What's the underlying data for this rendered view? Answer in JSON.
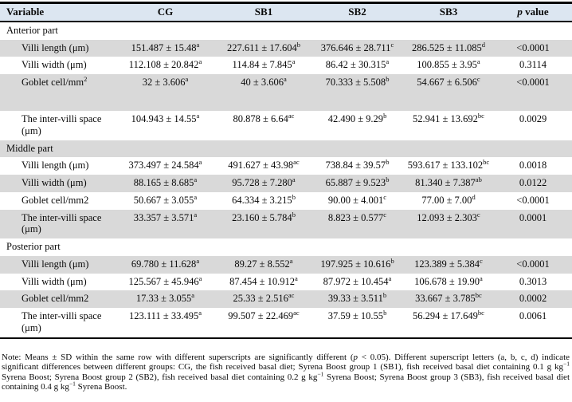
{
  "colors": {
    "header_bg": "#dce6f1",
    "stripe_bg": "#d9d9d9",
    "border": "#000000"
  },
  "header": {
    "columns": [
      {
        "text": "Variable"
      },
      {
        "text": "CG"
      },
      {
        "text": "SB1"
      },
      {
        "text": "SB2"
      },
      {
        "text": "SB3"
      },
      {
        "text": "p value",
        "italic_first_word": true
      }
    ]
  },
  "sections": [
    {
      "title": "Anterior part",
      "rows": [
        {
          "label": "Villi length (μm)",
          "cells": [
            {
              "v": "151.487 ± 15.48",
              "s": "a"
            },
            {
              "v": "227.611 ± 17.604",
              "s": "b"
            },
            {
              "v": "376.646 ± 28.711",
              "s": "c"
            },
            {
              "v": "286.525 ± 11.085",
              "s": "d"
            }
          ],
          "p": "<0.0001"
        },
        {
          "label": "Villi width (μm)",
          "cells": [
            {
              "v": "112.108 ± 20.842",
              "s": "a"
            },
            {
              "v": "114.84 ± 7.845",
              "s": "a"
            },
            {
              "v": "86.42 ± 30.315",
              "s": "a"
            },
            {
              "v": "100.855 ± 3.95",
              "s": "a"
            }
          ],
          "p": "0.3114"
        },
        {
          "label": "Goblet cell/mm",
          "label_sup": "2",
          "tall": true,
          "cells": [
            {
              "v": "32 ± 3.606",
              "s": "a"
            },
            {
              "v": "40 ± 3.606",
              "s": "a"
            },
            {
              "v": "70.333 ± 5.508",
              "s": "b"
            },
            {
              "v": "54.667 ± 6.506",
              "s": "c"
            }
          ],
          "p": "<0.0001"
        },
        {
          "label": "The inter-villi space (μm)",
          "cells": [
            {
              "v": "104.943 ± 14.55",
              "s": "a"
            },
            {
              "v": "80.878 ± 6.64",
              "s": "ac"
            },
            {
              "v": "42.490 ± 9.29",
              "s": "b"
            },
            {
              "v": "52.941 ± 13.692",
              "s": "bc"
            }
          ],
          "p": "0.0029"
        }
      ]
    },
    {
      "title": "Middle part",
      "rows": [
        {
          "label": "Villi length (μm)",
          "cells": [
            {
              "v": "373.497 ± 24.584",
              "s": "a"
            },
            {
              "v": "491.627 ± 43.98",
              "s": "ac"
            },
            {
              "v": "738.84 ± 39.57",
              "s": "b"
            },
            {
              "v": "593.617 ± 133.102",
              "s": "bc"
            }
          ],
          "p": "0.0018"
        },
        {
          "label": "Villi width (μm)",
          "cells": [
            {
              "v": "88.165 ± 8.685",
              "s": "a"
            },
            {
              "v": "95.728 ± 7.280",
              "s": "a"
            },
            {
              "v": "65.887 ± 9.523",
              "s": "b"
            },
            {
              "v": "81.340 ± 7.387",
              "s": "ab"
            }
          ],
          "p": "0.0122"
        },
        {
          "label": "Goblet cell/mm2",
          "cells": [
            {
              "v": "50.667 ± 3.055",
              "s": "a"
            },
            {
              "v": "64.334 ± 3.215",
              "s": "b"
            },
            {
              "v": "90.00 ± 4.001",
              "s": "c"
            },
            {
              "v": "77.00 ± 7.00",
              "s": "d"
            }
          ],
          "p": "<0.0001"
        },
        {
          "label": "The inter-villi space (μm)",
          "cells": [
            {
              "v": "33.357 ± 3.571",
              "s": "a"
            },
            {
              "v": "23.160 ± 5.784",
              "s": "b"
            },
            {
              "v": "8.823 ± 0.577",
              "s": "c"
            },
            {
              "v": "12.093 ± 2.303",
              "s": "c"
            }
          ],
          "p": "0.0001"
        }
      ]
    },
    {
      "title": "Posterior part",
      "rows": [
        {
          "label": "Villi length (μm)",
          "cells": [
            {
              "v": "69.780 ± 11.628",
              "s": "a"
            },
            {
              "v": "89.27 ± 8.552",
              "s": "a"
            },
            {
              "v": "197.925 ± 10.616",
              "s": "b"
            },
            {
              "v": "123.389 ± 5.384",
              "s": "c"
            }
          ],
          "p": "<0.0001"
        },
        {
          "label": "Villi width (μm)",
          "cells": [
            {
              "v": "125.567 ± 45.946",
              "s": "a"
            },
            {
              "v": "87.454 ± 10.912",
              "s": "a"
            },
            {
              "v": "87.972 ± 10.454",
              "s": "a"
            },
            {
              "v": "106.678 ± 19.90",
              "s": "a"
            }
          ],
          "p": "0.3013"
        },
        {
          "label": "Goblet cell/mm2",
          "cells": [
            {
              "v": "17.33 ± 3.055",
              "s": "a"
            },
            {
              "v": "25.33 ± 2.516",
              "s": "ac"
            },
            {
              "v": "39.33 ± 3.511",
              "s": "b"
            },
            {
              "v": "33.667 ± 3.785",
              "s": "bc"
            }
          ],
          "p": "0.0002"
        },
        {
          "label": "The inter-villi space (μm)",
          "cells": [
            {
              "v": "123.111 ± 33.495",
              "s": "a"
            },
            {
              "v": "99.507 ± 22.469",
              "s": "ac"
            },
            {
              "v": "37.59 ± 10.55",
              "s": "b"
            },
            {
              "v": "56.294 ± 17.649",
              "s": "bc"
            }
          ],
          "p": "0.0061"
        }
      ]
    }
  ],
  "note_segments": [
    {
      "text": "Note: Means ± SD within the same row with different superscripts are significantly different ("
    },
    {
      "text": "p",
      "italic": true
    },
    {
      "text": " < 0.05). Different superscript letters (a, b, c, d) indicate significant differences between different groups: CG, the fish received basal diet; Syrena Boost group 1 (SB1), fish received basal diet containing 0.1 g kg"
    },
    {
      "text": "−1",
      "sup": true
    },
    {
      "text": " Syrena Boost; Syrena Boost group 2 (SB2), fish received basal diet containing 0.2 g kg"
    },
    {
      "text": "−1",
      "sup": true
    },
    {
      "text": " Syrena Boost; Syrena Boost group 3 (SB3), fish received basal diet containing 0.4 g kg"
    },
    {
      "text": "−1",
      "sup": true
    },
    {
      "text": " Syrena Boost."
    }
  ]
}
